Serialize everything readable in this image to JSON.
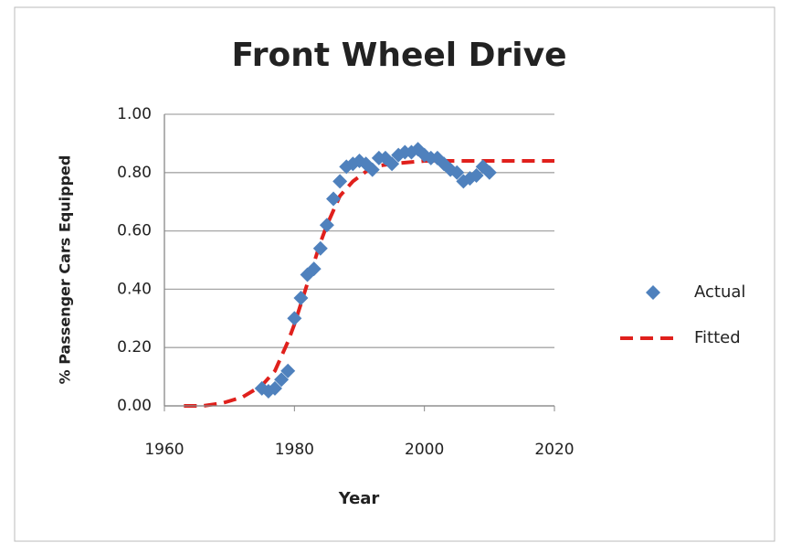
{
  "chart_data": {
    "type": "scatter",
    "title": "Front Wheel Drive",
    "xlabel": "Year",
    "ylabel": "% Passenger Cars Equipped",
    "xlim": [
      1960,
      2020
    ],
    "xticks": [
      1960,
      1980,
      2000,
      2020
    ],
    "ylim": [
      0,
      1
    ],
    "yticks": [
      {
        "value": 0,
        "label": "0.00"
      },
      {
        "value": 0.2,
        "label": "0.20"
      },
      {
        "value": 0.4,
        "label": "0.40"
      },
      {
        "value": 0.6,
        "label": "0.60"
      },
      {
        "value": 0.8,
        "label": "0.80"
      },
      {
        "value": 1,
        "label": "1.00"
      }
    ],
    "grid": true,
    "legend": "right",
    "series": [
      {
        "name": "Actual",
        "type": "scatter",
        "color": "#4f81bd",
        "x": [
          1975,
          1976,
          1977,
          1978,
          1979,
          1980,
          1981,
          1982,
          1983,
          1984,
          1985,
          1986,
          1987,
          1988,
          1989,
          1990,
          1991,
          1992,
          1993,
          1994,
          1995,
          1996,
          1997,
          1998,
          1999,
          2000,
          2001,
          2002,
          2003,
          2004,
          2005,
          2006,
          2007,
          2008,
          2009,
          2010
        ],
        "values": [
          0.06,
          0.05,
          0.06,
          0.09,
          0.12,
          0.3,
          0.37,
          0.45,
          0.47,
          0.54,
          0.62,
          0.71,
          0.77,
          0.82,
          0.83,
          0.84,
          0.83,
          0.81,
          0.85,
          0.85,
          0.83,
          0.86,
          0.87,
          0.87,
          0.88,
          0.86,
          0.85,
          0.85,
          0.83,
          0.81,
          0.8,
          0.77,
          0.78,
          0.79,
          0.82,
          0.8
        ]
      },
      {
        "name": "Fitted",
        "type": "line",
        "color": "#e0201c",
        "x": [
          1963,
          1966,
          1969,
          1972,
          1975,
          1977,
          1979,
          1980,
          1981,
          1982,
          1983,
          1984,
          1985,
          1987,
          1989,
          1992,
          1995,
          2000,
          2010,
          2020
        ],
        "values": [
          0.0,
          0.0,
          0.01,
          0.03,
          0.07,
          0.12,
          0.22,
          0.28,
          0.35,
          0.42,
          0.49,
          0.56,
          0.62,
          0.72,
          0.77,
          0.82,
          0.83,
          0.84,
          0.84,
          0.84
        ]
      }
    ]
  }
}
